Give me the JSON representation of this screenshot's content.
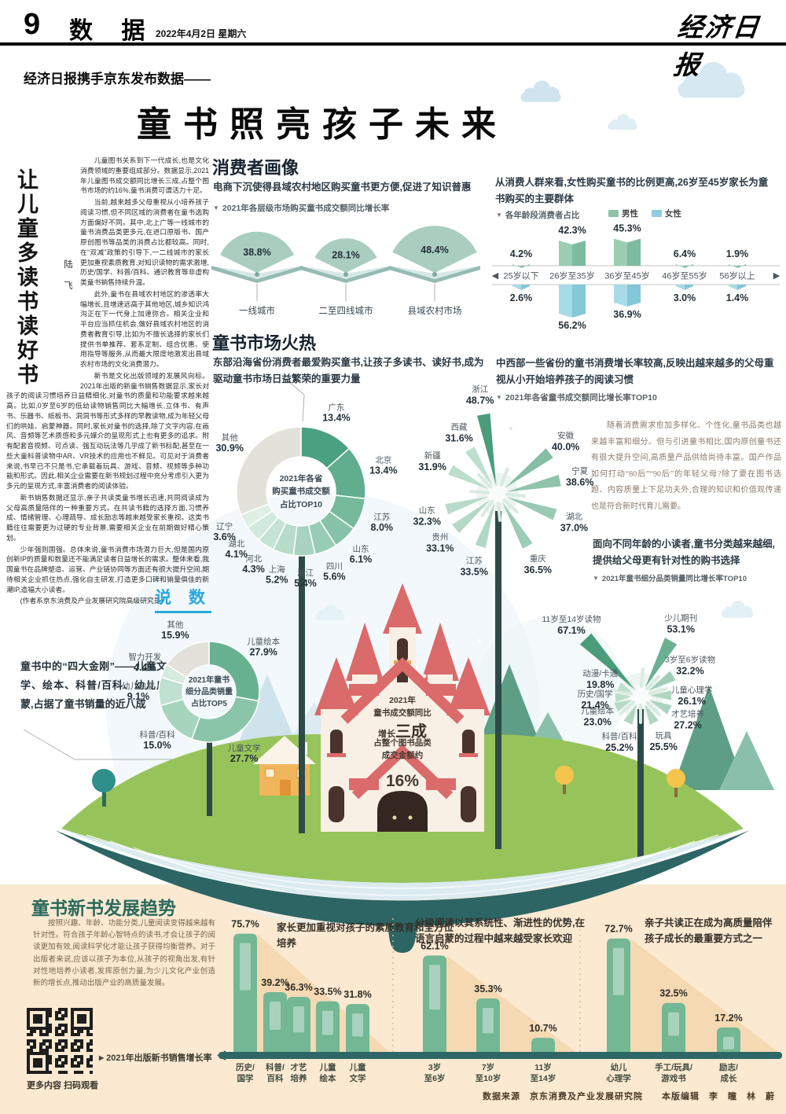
{
  "header": {
    "page_number": "9",
    "section_name": "数 据",
    "date": "2022年4月2日 星期六",
    "masthead": "经济日报"
  },
  "headline": {
    "kicker": "经济日报携手京东发布数据——",
    "title": "童书照亮孩子未来"
  },
  "editorial": {
    "vertical_title": "让儿童多读书读好书",
    "author": "陆 飞",
    "tag": "说 数",
    "paragraphs": [
      "儿童图书关系到下一代成长,也是文化消费领域的重要组成部分。数据显示,2021年儿童图书成交额同比增长三成,占整个图书市场的约16%,童书消费可谓活力十足。",
      "当前,越来越多父母重视从小培养孩子阅读习惯,但不同区域的消费者在童书选购方面偏好不同。其中,北上广等一线城市的童书消费品类更多元,在进口原版书、国产原创图书等品类的消费占比都较高。同时,在“双减”政策的引导下,一二线城市的家长更加重视素质教育,对知识读物的需求激增,历史/国学、科普/百科、通识教育等非虚构类童书销售持续升温。",
      "此外,童书在县域农村地区的渗透率大幅增长,且增速远高于其他地区,城乡知识鸿沟正在下一代身上加速弥合。相关企业和平台应当抓住机会,做好县域农村地区的消费者教育引导,比如为不擅长选择的家长们提供书单推荐、套系定制、组合优惠、使用指导等服务,从而最大限度地激发出县域农村市场的文化消费潜力。",
      "新书是文化出版领域的发展风向标。2021年出版的新童书销售数据显示,家长对孩子的阅读习惯培养日益精细化,对童书的质量和功能要求越来越高。比如,0岁至6岁的低幼读物销售同比大幅增长,立体书、有声书、乐器书、纸板书、洞洞书等形式多样的早教读物,成为年轻父母们的哄娃、启蒙神器。同时,家长对童书的选择,除了文字内容,在画风、音频等艺术质感和多元媒介的呈现形式上也有更多的追求。附有配套音视频、可点读、强互动玩法等几乎成了新书标配,甚至在一些大童科普读物中AR、VR技术的应用也不鲜见。可见对于消费者来说,书早已不只是书,它承载着玩具、游戏、音频、视频等多种功能和形式。因此,相关企业需要在新书规划过程中充分考虑引入更为多元的呈现方式,丰富消费者的阅读体验。",
      "新书销售数据还显示,亲子共读类童书增长迅速,共同阅读成为父母高质量陪伴的一种重要方式。在共读书籍的选择方面,习惯养成、情绪管理、心理疏导、成长励志等越来越受家长重视。这类书籍往往需要更为过硬的专业背景,需要相关企业在前期做好精心策划。",
      "少年强则国强。总体来说,童书消费市场潜力巨大,但是国内原创新IP的质量和数量还不能满足读者日益增长的需求。整体来看,我国童书在品牌塑造、运营、产业链协同等方面还有很大提升空间,期待相关企业抓住热点,强化自主研发,打造更多口碑和销量俱佳的新潮IP,造福大小读者。",
      "(作者系京东消费及产业发展研究院高级研究员)"
    ]
  },
  "sections": {
    "consumer": {
      "title": "消费者画像",
      "desc_left": "电商下沉使得县域农村地区购买童书更方便,促进了知识普惠",
      "desc_right": "从消费人群来看,女性购买童书的比例更高,26岁至45岁家长为童书购买的主要群体"
    },
    "market": {
      "title": "童书市场火热",
      "desc_left": "东部沿海省份消费者最爱购买童书,让孩子多读书、读好书,成为驱动童书市场日益繁荣的重要力量",
      "desc_right": "中西部一些省份的童书消费增长率较高,反映出越来越多的父母重视从小开始培养孩子的阅读习惯",
      "note": "随着消费需求愈加多样化、个性化,童书品类也越来越丰富和细分。但与引进童书相比,国内原创童书还有很大提升空间,高质量产品供给尚待丰富。国产作品如何打动“80后”“90后”的年轻父母?除了要在图书选题、内容质量上下足功夫外,合理的知识和价值观传递也是符合新时代育儿需要。",
      "desc_categories": "面向不同年龄的小读者,童书分类越来越细,提供给父母更有针对性的购书选择",
      "top5_caption": "童书中的“四大金刚”——儿童文学、绘本、科普/百科、幼儿启蒙,占据了童书销量的近八成"
    }
  },
  "castle": {
    "line1": "2021年",
    "line2": "童书成交额同比",
    "line3_prefix": "增长",
    "line3_big": "三成",
    "line4": "占整个图书品类",
    "line5": "成交金额约",
    "value": "16%"
  },
  "bottom": {
    "title": "童书新书发展趋势",
    "paragraph": "按照兴趣、年龄、功能分类,儿童阅读变得越来越有针对性。符合孩子年龄心智特点的读书,才会让孩子的阅读更加有效,阅读科学化才能让孩子获得均衡营养。对于出版者来说,应该以孩子为本位,从孩子的视角出发,有针对性地培养小读者,发挥原创力量,为少儿文化产业创造新的增长点,推动出版产业的高质量发展。",
    "qr_caption": "更多内容 扫码观看",
    "chart_label": "2021年出版新书销售增长率"
  },
  "footer": {
    "credits": "数据来源　京东消费及产业发展研究院　　本版编辑　李　瞳　林　蔚"
  },
  "colors": {
    "accent_blue": "#29a7de",
    "bar_green": "#73b795",
    "baseline_teal": "#2e6767",
    "male_green": "#8cc4a8",
    "female_blue": "#8ecddd",
    "panel_peach": "#fce9d1"
  },
  "chart_data": [
    {
      "id": "city-tier-fans",
      "type": "bar",
      "variant": "fan",
      "unit": "%",
      "title": "2021年各层级市场购买童书成交额同比增长率",
      "categories": [
        "一线城市",
        "二至四线城市",
        "县域农村市场"
      ],
      "values": [
        38.8,
        28.1,
        48.4
      ]
    },
    {
      "id": "age-gender",
      "type": "bar",
      "variant": "book-pyramid",
      "unit": "%",
      "title": "各年龄段消费者占比",
      "categories": [
        "25岁以下",
        "26岁至35岁",
        "36岁至45岁",
        "46岁至55岁",
        "56岁以上"
      ],
      "series": [
        {
          "name": "男性",
          "values": [
            4.2,
            42.3,
            45.3,
            6.4,
            1.9
          ]
        },
        {
          "name": "女性",
          "values": [
            2.6,
            56.2,
            36.9,
            3.0,
            1.4
          ]
        }
      ]
    },
    {
      "id": "province-share",
      "type": "pie",
      "unit": "%",
      "title": "2021年各省购买童书成交额占比TOP10",
      "center_label": "2021年各省\n购买童书成交额\n占比TOP10",
      "labels": [
        "广东",
        "北京",
        "江苏",
        "山东",
        "四川",
        "浙江",
        "上海",
        "河北",
        "湖北",
        "辽宁",
        "其他"
      ],
      "values": [
        13.4,
        13.4,
        8.0,
        6.1,
        5.6,
        5.4,
        5.2,
        4.3,
        4.1,
        3.6,
        30.9
      ]
    },
    {
      "id": "province-growth",
      "type": "bar",
      "variant": "firework",
      "unit": "%",
      "title": "2021年各省童书成交额同比增长率TOP10",
      "labels": [
        "浙江",
        "安徽",
        "宁夏",
        "湖北",
        "重庆",
        "江苏",
        "贵州",
        "山东",
        "新疆",
        "西藏"
      ],
      "values": [
        48.7,
        40.0,
        38.6,
        37.0,
        36.5,
        33.5,
        33.1,
        32.3,
        31.9,
        31.6
      ]
    },
    {
      "id": "category-growth",
      "type": "bar",
      "variant": "firework",
      "unit": "%",
      "title": "2021年童书细分品类销量同比增长率TOP10",
      "labels": [
        "11岁至14岁读物",
        "少儿期刊",
        "3岁至6岁读物",
        "儿童心理学",
        "才艺培养",
        "玩具",
        "科普/百科",
        "儿童绘本",
        "历史/国学",
        "动漫/卡通"
      ],
      "values": [
        67.1,
        53.1,
        32.2,
        26.1,
        27.2,
        25.5,
        25.2,
        23.0,
        21.4,
        19.8
      ]
    },
    {
      "id": "category-share",
      "type": "pie",
      "unit": "%",
      "title": "2021年童书细分品类销量占比TOP5",
      "center_label": "2021年童书\n细分品类销量\n占比TOP5",
      "labels": [
        "儿童绘本",
        "儿童文学",
        "科普/百科",
        "幼儿启蒙",
        "智力开发",
        "其他"
      ],
      "values": [
        27.9,
        27.7,
        15.0,
        9.1,
        4.4,
        15.9
      ]
    },
    {
      "id": "new-book-growth",
      "type": "bar",
      "unit": "%",
      "title": "2021年出版新书销售增长率",
      "groups": [
        {
          "note": "家长更加重视对孩子的素质教育和全方位培养",
          "categories": [
            "历史/\n国学",
            "科普/\n百科",
            "才艺\n培养",
            "儿童\n绘本",
            "儿童\n文学"
          ],
          "values": [
            75.7,
            39.2,
            36.3,
            33.5,
            31.8
          ]
        },
        {
          "note": "分级阅读以其系统性、渐进性的优势,在语言启蒙的过程中越来越受家长欢迎",
          "categories": [
            "3岁\n至6岁",
            "7岁\n至10岁",
            "11岁\n至14岁"
          ],
          "values": [
            62.1,
            35.3,
            10.7
          ]
        },
        {
          "note": "亲子共读正在成为高质量陪伴孩子成长的最重要方式之一",
          "categories": [
            "幼儿\n心理学",
            "手工/玩具/\n游戏书",
            "励志/\n成长"
          ],
          "values": [
            72.7,
            32.5,
            17.2
          ]
        }
      ]
    }
  ]
}
